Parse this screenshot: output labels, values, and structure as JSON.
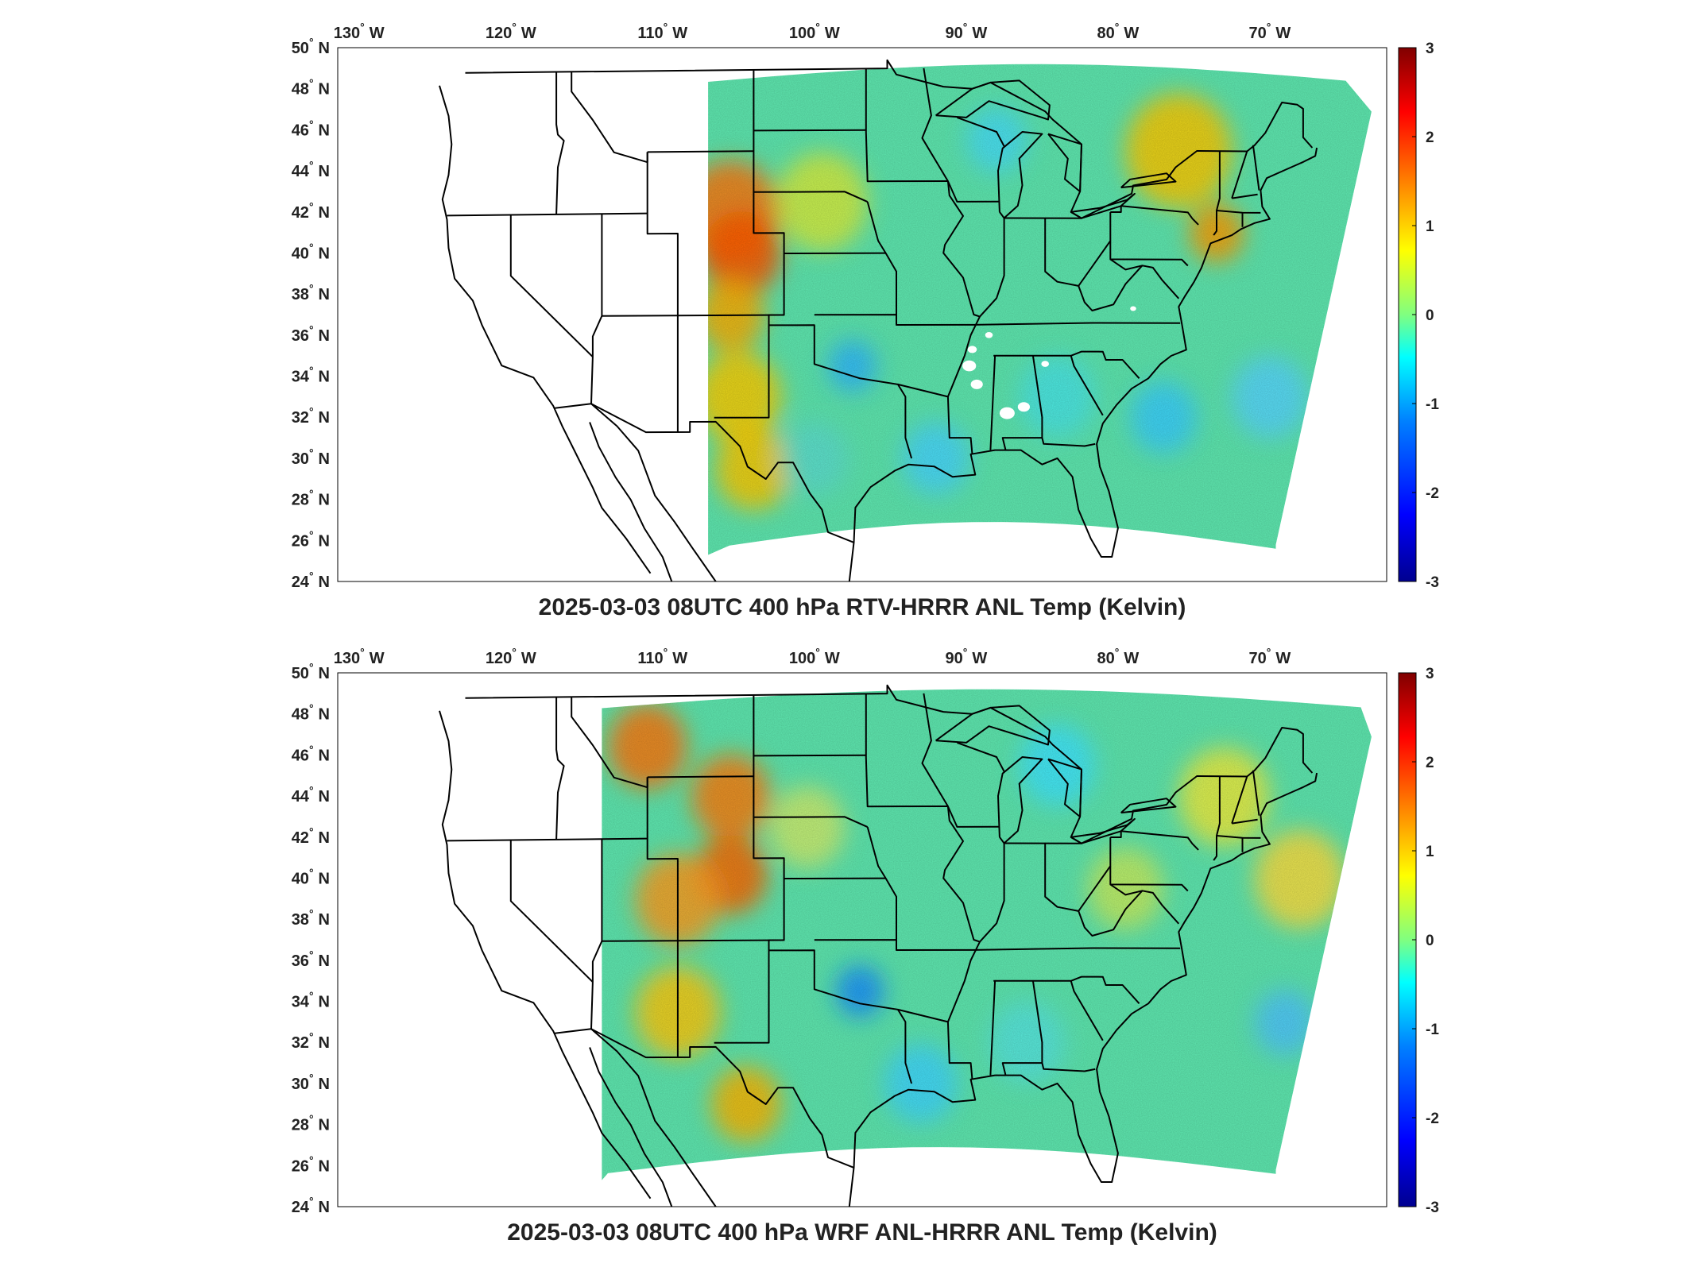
{
  "panels": [
    {
      "id": "top",
      "title": "2025-03-03 08UTC 400 hPa RTV-HRRR ANL Temp (Kelvin)",
      "domain_west_extent_deg": -107,
      "has_white_gaps": true
    },
    {
      "id": "bottom",
      "title": "2025-03-03 08UTC 400 hPa WRF ANL-HRRR ANL Temp (Kelvin)",
      "domain_west_extent_deg": -114,
      "has_white_gaps": false
    }
  ],
  "lon_ticks": [
    {
      "deg": "130",
      "hemi": "W"
    },
    {
      "deg": "120",
      "hemi": "W"
    },
    {
      "deg": "110",
      "hemi": "W"
    },
    {
      "deg": "100",
      "hemi": "W"
    },
    {
      "deg": "90",
      "hemi": "W"
    },
    {
      "deg": "80",
      "hemi": "W"
    },
    {
      "deg": "70",
      "hemi": "W"
    }
  ],
  "lat_ticks": [
    {
      "deg": "50",
      "hemi": "N"
    },
    {
      "deg": "48",
      "hemi": "N"
    },
    {
      "deg": "46",
      "hemi": "N"
    },
    {
      "deg": "44",
      "hemi": "N"
    },
    {
      "deg": "42",
      "hemi": "N"
    },
    {
      "deg": "40",
      "hemi": "N"
    },
    {
      "deg": "38",
      "hemi": "N"
    },
    {
      "deg": "36",
      "hemi": "N"
    },
    {
      "deg": "34",
      "hemi": "N"
    },
    {
      "deg": "32",
      "hemi": "N"
    },
    {
      "deg": "30",
      "hemi": "N"
    },
    {
      "deg": "28",
      "hemi": "N"
    },
    {
      "deg": "26",
      "hemi": "N"
    },
    {
      "deg": "24",
      "hemi": "N"
    }
  ],
  "colorbar": {
    "min": -3,
    "max": 3,
    "ticks": [
      "3",
      "2",
      "1",
      "0",
      "-1",
      "-2",
      "-3"
    ],
    "colormap": [
      "#00008f",
      "#0000ff",
      "#0080ff",
      "#00ffff",
      "#80ff80",
      "#ffff00",
      "#ff8000",
      "#ff0000",
      "#800000"
    ]
  },
  "degree_symbol": "°",
  "colors": {
    "background_field": "#5fe8b0",
    "border_lines": "#000000",
    "axes_frame": "#000000"
  }
}
